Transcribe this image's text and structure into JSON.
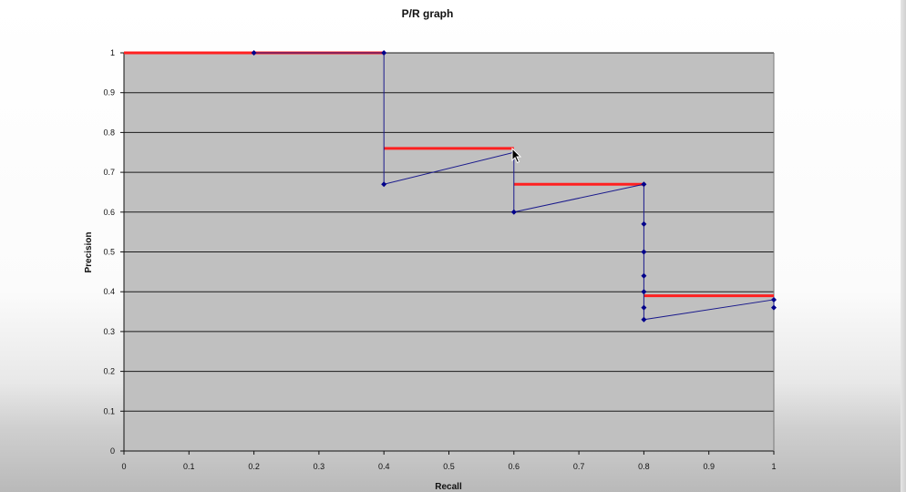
{
  "chart_data": {
    "type": "line",
    "title": "P/R graph",
    "xlabel": "Recall",
    "ylabel": "Precision",
    "xlim": [
      0,
      1
    ],
    "ylim": [
      0,
      1
    ],
    "x_ticks": [
      "0",
      "0.1",
      "0.2",
      "0.3",
      "0.4",
      "0.5",
      "0.6",
      "0.7",
      "0.8",
      "0.9",
      "1"
    ],
    "y_ticks": [
      "0",
      "0.1",
      "0.2",
      "0.3",
      "0.4",
      "0.5",
      "0.6",
      "0.7",
      "0.8",
      "0.9",
      "1"
    ],
    "grid": "horizontal",
    "legend": "none",
    "series": [
      {
        "style": "line-markers",
        "color": "#1a1a8c",
        "marker_color": "#00008b",
        "points": [
          [
            0.2,
            1.0
          ],
          [
            0.4,
            1.0
          ],
          [
            0.4,
            0.67
          ],
          [
            0.6,
            0.75
          ],
          [
            0.6,
            0.6
          ],
          [
            0.8,
            0.67
          ],
          [
            0.8,
            0.57
          ],
          [
            0.8,
            0.5
          ],
          [
            0.8,
            0.44
          ],
          [
            0.8,
            0.4
          ],
          [
            0.8,
            0.36
          ],
          [
            0.8,
            0.33
          ],
          [
            1.0,
            0.38
          ],
          [
            1.0,
            0.36
          ]
        ]
      }
    ],
    "interpolated_segments": {
      "color": "#ff2020",
      "segments": [
        {
          "x": [
            0.0,
            0.4
          ],
          "y": 1.0
        },
        {
          "x": [
            0.4,
            0.6
          ],
          "y": 0.76
        },
        {
          "x": [
            0.6,
            0.8
          ],
          "y": 0.67
        },
        {
          "x": [
            0.8,
            1.0
          ],
          "y": 0.39
        }
      ]
    },
    "plot_area_color": "#c0c0c0",
    "gridline_color": "#1a1a1a"
  }
}
